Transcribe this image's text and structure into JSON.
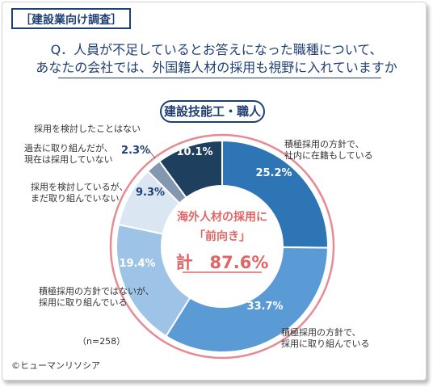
{
  "header": {
    "tag": "［建設業向け調査］",
    "question_line1": "Q．人員が不足しているとお答えになった職種について、",
    "question_line2": "あなたの会社では、外国籍人材の採用も視野に入れていますか"
  },
  "chart_data": {
    "type": "pie",
    "variant": "donut",
    "title": "建設技能工・職人",
    "slices": [
      {
        "label": "積極採用の方針で、社内に在籍もしている",
        "label_lines": [
          "積極採用の方針で、",
          "社内に在籍もしている"
        ],
        "value": 25.2,
        "value_label": "25.2%",
        "color": "#2e75b6"
      },
      {
        "label": "積極採用の方針で、採用に取り組んでいる",
        "label_lines": [
          "積極採用の方針で、",
          "採用に取り組んでいる"
        ],
        "value": 33.7,
        "value_label": "33.7%",
        "color": "#5a9bd5"
      },
      {
        "label": "積極採用の方針ではないが、採用に取り組んでいる",
        "label_lines": [
          "積極採用の方針ではないが、",
          "採用に取り組んでいる"
        ],
        "value": 19.4,
        "value_label": "19.4%",
        "color": "#9dc3e6"
      },
      {
        "label": "採用を検討しているが、まだ取り組んでいない",
        "label_lines": [
          "採用を検討しているが、",
          "まだ取り組んでいない"
        ],
        "value": 9.3,
        "value_label": "9.3%",
        "color": "#dae6f2"
      },
      {
        "label": "過去に取り組んだが、現在は採用していない",
        "label_lines": [
          "過去に取り組んだが、",
          "現在は採用していない"
        ],
        "value": 2.3,
        "value_label": "2.3%",
        "color": "#8497b0"
      },
      {
        "label": "採用を検討したことはない",
        "label_lines": [
          "採用を検討したことはない"
        ],
        "value": 10.1,
        "value_label": "10.1%",
        "color": "#1f3f5f"
      }
    ],
    "center_text": {
      "line1": "海外人材の採用に",
      "line2": "「前向き」",
      "total": "計　87.6%",
      "color": "#e06666"
    },
    "sample_size": "（n=258）"
  },
  "footer": {
    "credit": "©ヒューマンリソシア"
  }
}
